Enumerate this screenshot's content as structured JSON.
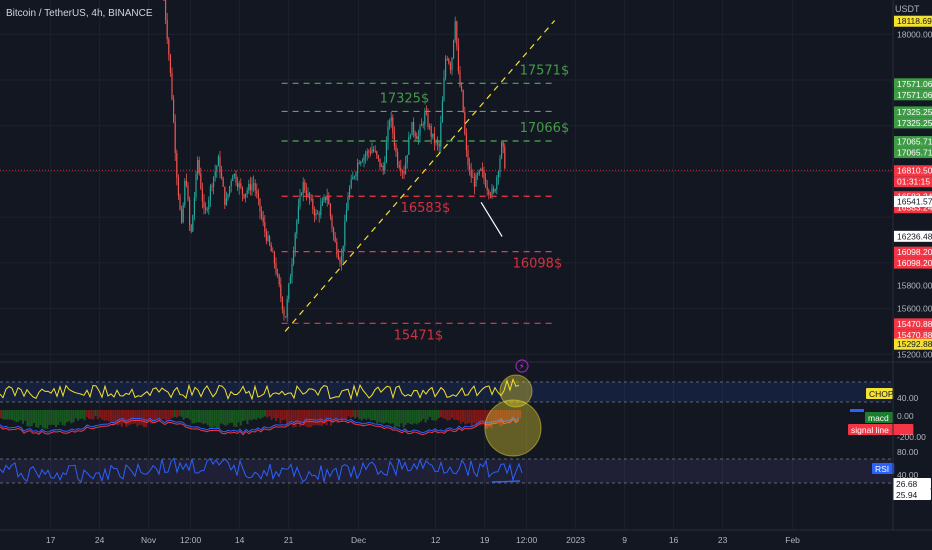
{
  "header": {
    "symbol_line": "Bitcoin / TetherUS, 4h, BINANCE"
  },
  "price_scale": {
    "currency": "USDT",
    "ticks": [
      {
        "label": "18000.00",
        "value": 18000
      },
      {
        "label": "15800.00",
        "value": 15800
      },
      {
        "label": "15600.00",
        "value": 15600
      },
      {
        "label": "15200.00",
        "value": 15200
      }
    ],
    "badges": [
      {
        "label": "18118.69",
        "value": 18118.69,
        "bg": "#f5e12f",
        "fg": "#131722"
      },
      {
        "label": "17571.06",
        "value": 17571.06,
        "bg": "#3f9b46",
        "fg": "#ffffff"
      },
      {
        "label": "17571.06",
        "value": 17571.06,
        "bg": "#3f9b46",
        "fg": "#ffffff",
        "stack": 1
      },
      {
        "label": "17325.25",
        "value": 17325.25,
        "bg": "#3f9b46",
        "fg": "#ffffff"
      },
      {
        "label": "17325.25",
        "value": 17325.25,
        "bg": "#3f9b46",
        "fg": "#ffffff",
        "stack": 1
      },
      {
        "label": "17065.71",
        "value": 17065.71,
        "bg": "#3f9b46",
        "fg": "#ffffff"
      },
      {
        "label": "17065.71",
        "value": 17065.71,
        "bg": "#3f9b46",
        "fg": "#ffffff",
        "stack": 1
      },
      {
        "label": "16810.50",
        "value": 16810.5,
        "bg": "#f23645",
        "fg": "#ffffff"
      },
      {
        "label": "01:31:15",
        "value": 16810.5,
        "bg": "#f23645",
        "fg": "#ffffff",
        "stack": 1
      },
      {
        "label": "16583.24",
        "value": 16583.24,
        "bg": "#f23645",
        "fg": "#ffffff"
      },
      {
        "label": "16583.24",
        "value": 16583.24,
        "bg": "#f23645",
        "fg": "#ffffff",
        "stack": 1
      },
      {
        "label": "16541.57",
        "value": 16541.57,
        "bg": "#ffffff",
        "fg": "#131722"
      },
      {
        "label": "16236.48",
        "value": 16236.48,
        "bg": "#ffffff",
        "fg": "#131722"
      },
      {
        "label": "16098.20",
        "value": 16098.2,
        "bg": "#f23645",
        "fg": "#ffffff"
      },
      {
        "label": "16098.20",
        "value": 16098.2,
        "bg": "#f23645",
        "fg": "#ffffff",
        "stack": 1
      },
      {
        "label": "15470.88",
        "value": 15470.88,
        "bg": "#f23645",
        "fg": "#ffffff"
      },
      {
        "label": "15470.88",
        "value": 15470.88,
        "bg": "#f23645",
        "fg": "#ffffff",
        "stack": 1
      },
      {
        "label": "15292.88",
        "value": 15292.88,
        "bg": "#f5e12f",
        "fg": "#131722"
      }
    ]
  },
  "time_axis": {
    "ticks": [
      {
        "label": "17",
        "day": 17
      },
      {
        "label": "24",
        "day": 24
      },
      {
        "label": "Nov",
        "day": 31
      },
      {
        "label": "12:00",
        "day": 37
      },
      {
        "label": "14",
        "day": 44
      },
      {
        "label": "21",
        "day": 51
      },
      {
        "label": "Dec",
        "day": 61
      },
      {
        "label": "12",
        "day": 72
      },
      {
        "label": "19",
        "day": 79
      },
      {
        "label": "12:00",
        "day": 85
      },
      {
        "label": "2023",
        "day": 92
      },
      {
        "label": "9",
        "day": 99
      },
      {
        "label": "16",
        "day": 106
      },
      {
        "label": "23",
        "day": 113
      },
      {
        "label": "Feb",
        "day": 123
      }
    ]
  },
  "chart_data": {
    "type": "line",
    "title": "Bitcoin / TetherUS, 4h, BINANCE",
    "x_unit": "trading days on time axis",
    "ylabel": "USDT",
    "ylim": [
      15150,
      18300
    ],
    "price_path": [
      {
        "day": 33.2,
        "price": 18300
      },
      {
        "day": 33.8,
        "price": 17900
      },
      {
        "day": 34.3,
        "price": 17500
      },
      {
        "day": 35.0,
        "price": 16800
      },
      {
        "day": 35.7,
        "price": 16300
      },
      {
        "day": 36.3,
        "price": 16800
      },
      {
        "day": 37.0,
        "price": 16200
      },
      {
        "day": 38.0,
        "price": 16900
      },
      {
        "day": 39.0,
        "price": 16400
      },
      {
        "day": 40.0,
        "price": 16700
      },
      {
        "day": 41.0,
        "price": 16900
      },
      {
        "day": 42.0,
        "price": 16500
      },
      {
        "day": 43.0,
        "price": 16800
      },
      {
        "day": 44.5,
        "price": 16600
      },
      {
        "day": 46.0,
        "price": 16700
      },
      {
        "day": 47.5,
        "price": 16300
      },
      {
        "day": 49.0,
        "price": 16000
      },
      {
        "day": 50.5,
        "price": 15500
      },
      {
        "day": 52.0,
        "price": 16300
      },
      {
        "day": 53.0,
        "price": 16700
      },
      {
        "day": 55.0,
        "price": 16400
      },
      {
        "day": 56.5,
        "price": 16600
      },
      {
        "day": 57.5,
        "price": 16200
      },
      {
        "day": 58.5,
        "price": 16000
      },
      {
        "day": 59.5,
        "price": 16600
      },
      {
        "day": 61.0,
        "price": 16900
      },
      {
        "day": 63.0,
        "price": 17000
      },
      {
        "day": 64.5,
        "price": 16800
      },
      {
        "day": 65.5,
        "price": 17300
      },
      {
        "day": 66.5,
        "price": 16900
      },
      {
        "day": 67.5,
        "price": 16800
      },
      {
        "day": 68.5,
        "price": 17200
      },
      {
        "day": 69.5,
        "price": 17100
      },
      {
        "day": 70.5,
        "price": 17300
      },
      {
        "day": 71.5,
        "price": 17100
      },
      {
        "day": 72.5,
        "price": 17000
      },
      {
        "day": 73.5,
        "price": 17850
      },
      {
        "day": 74.2,
        "price": 17700
      },
      {
        "day": 74.8,
        "price": 18150
      },
      {
        "day": 75.3,
        "price": 17600
      },
      {
        "day": 75.8,
        "price": 17450
      },
      {
        "day": 76.3,
        "price": 17000
      },
      {
        "day": 76.8,
        "price": 16800
      },
      {
        "day": 77.5,
        "price": 16700
      },
      {
        "day": 78.5,
        "price": 16800
      },
      {
        "day": 79.5,
        "price": 16650
      },
      {
        "day": 80.3,
        "price": 16600
      },
      {
        "day": 81.0,
        "price": 16850
      },
      {
        "day": 81.5,
        "price": 17050
      },
      {
        "day": 82.0,
        "price": 16810
      }
    ],
    "levels": [
      {
        "name": "17571$",
        "value": 17571,
        "color": "#4caf50",
        "day_start": 50,
        "day_end": 89,
        "label_day": 84
      },
      {
        "name": "17325$",
        "value": 17325,
        "color": "#4caf50",
        "day_start": 50,
        "day_end": 89,
        "label_day": 64
      },
      {
        "name": "17066$",
        "value": 17066,
        "color": "#4caf50",
        "day_start": 50,
        "day_end": 89,
        "label_day": 84
      },
      {
        "name": "16583$",
        "value": 16583,
        "color": "#f23645",
        "day_start": 50,
        "day_end": 89,
        "label_day": 67
      },
      {
        "name": "16098$",
        "value": 16098,
        "color": "#f23645",
        "day_start": 50,
        "day_end": 89,
        "label_day": 83
      },
      {
        "name": "15471$",
        "value": 15471,
        "color": "#f23645",
        "day_start": 50,
        "day_end": 89,
        "label_day": 66
      }
    ],
    "trendline": {
      "start": {
        "day": 50.5,
        "price": 15400
      },
      "end": {
        "day": 89,
        "price": 18120
      },
      "color": "#f5e12f"
    },
    "white_line": {
      "start": {
        "day": 78.5,
        "price": 16530
      },
      "end": {
        "day": 81.5,
        "price": 16230
      },
      "color": "#ffffff"
    },
    "current_price": 16810.5
  },
  "indicators": {
    "chop": {
      "label": "CHOP",
      "value_label": "40.00"
    },
    "macd": {
      "macd_label": "macd",
      "signal_label": "signal line",
      "ticks": [
        "0.00",
        "-200.00"
      ]
    },
    "rsi": {
      "label": "RSI",
      "ticks": [
        "80.00",
        "40.00"
      ],
      "values": [
        "26.68",
        "25.94"
      ]
    }
  },
  "colors": {
    "background": "#131722",
    "up": "#26a69a",
    "down": "#ef5350",
    "grid": "#1e222d",
    "chop_line": "#f5e12f",
    "rsi_line": "#2962ff",
    "macd_line": "#2962ff",
    "signal_line": "#f23645"
  }
}
